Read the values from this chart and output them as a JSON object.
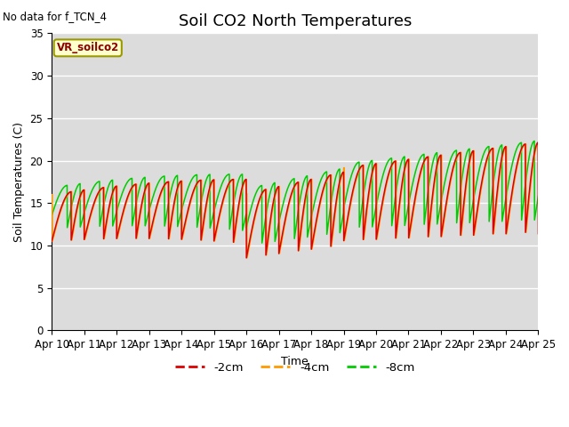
{
  "title": "Soil CO2 North Temperatures",
  "top_left_note": "No data for f_TCN_4",
  "vr_label": "VR_soilco2",
  "ylabel": "Soil Temperatures (C)",
  "xlabel": "Time",
  "ylim": [
    0,
    35
  ],
  "yticks": [
    0,
    5,
    10,
    15,
    20,
    25,
    30,
    35
  ],
  "xtick_labels": [
    "Apr 10",
    "Apr 11",
    "Apr 12",
    "Apr 13",
    "Apr 14",
    "Apr 15",
    "Apr 16",
    "Apr 17",
    "Apr 18",
    "Apr 19",
    "Apr 20",
    "Apr 21",
    "Apr 22",
    "Apr 23",
    "Apr 24",
    "Apr 25"
  ],
  "line_colors": [
    "#dd0000",
    "#ff9900",
    "#00cc00"
  ],
  "line_labels": [
    "-2cm",
    "-4cm",
    "-8cm"
  ],
  "bg_color": "#dcdcdc",
  "outer_bg": "#ffffff",
  "grid_color": "#ffffff",
  "title_fontsize": 13,
  "label_fontsize": 9,
  "tick_fontsize": 8.5
}
